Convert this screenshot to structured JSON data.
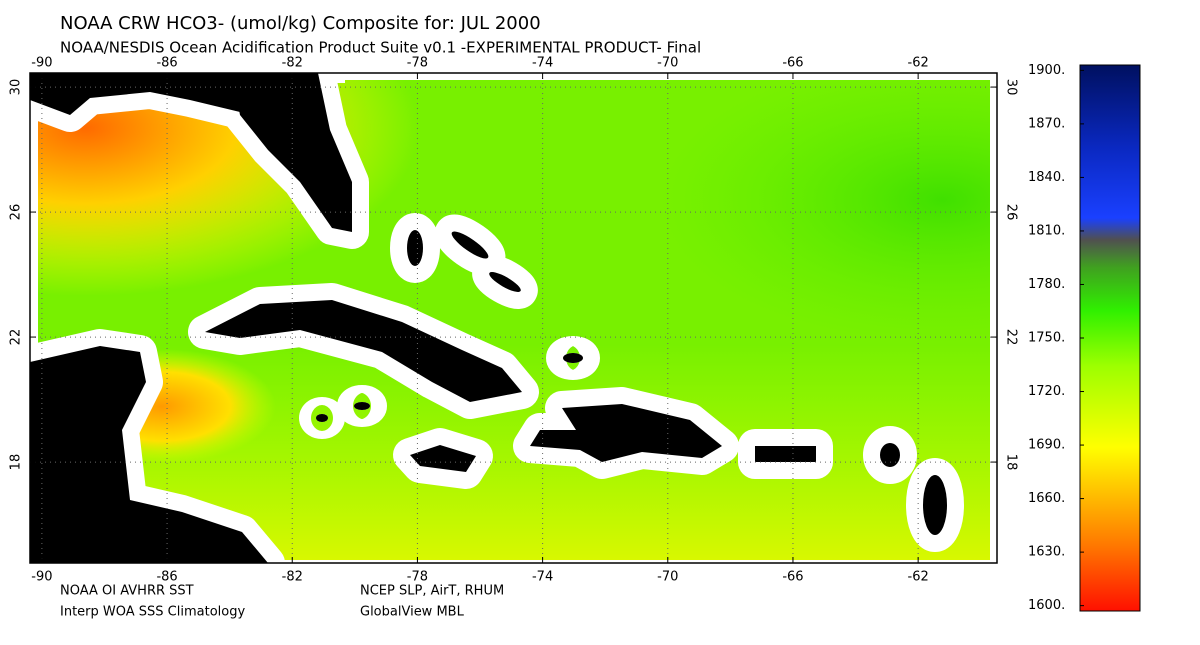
{
  "title": "NOAA CRW HCO3- (umol/kg) Composite for: JUL 2000",
  "subtitle": "NOAA/NESDIS Ocean Acidification Product Suite  v0.1 -EXPERIMENTAL PRODUCT-   Final",
  "map": {
    "lonlim": [
      -90.38,
      -59.48
    ],
    "latlim": [
      14.77,
      30.45
    ],
    "lon_ticks": [
      -90,
      -86,
      -82,
      -78,
      -74,
      -70,
      -66,
      -62
    ],
    "lat_ticks": [
      30,
      26,
      22,
      18
    ],
    "grid": true
  },
  "colorbar": {
    "lim": [
      1597,
      1903
    ],
    "ticks": [
      {
        "value": 1900,
        "label": "1900."
      },
      {
        "value": 1870,
        "label": "1870."
      },
      {
        "value": 1840,
        "label": "1840."
      },
      {
        "value": 1810,
        "label": "1810."
      },
      {
        "value": 1780,
        "label": "1780."
      },
      {
        "value": 1750,
        "label": "1750."
      },
      {
        "value": 1720,
        "label": "1720."
      },
      {
        "value": 1690,
        "label": "1690."
      },
      {
        "value": 1660,
        "label": "1660."
      },
      {
        "value": 1630,
        "label": "1630."
      },
      {
        "value": 1600,
        "label": "1600."
      }
    ]
  },
  "footer": {
    "left": [
      "NOAA OI AVHRR SST",
      "Interp WOA SSS Climatology"
    ],
    "right": [
      "NCEP SLP, AirT, RHUM",
      "GlobalView MBL"
    ]
  }
}
